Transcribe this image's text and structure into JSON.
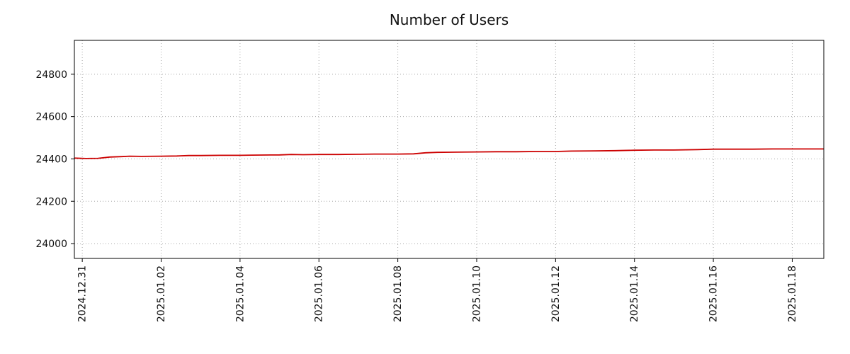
{
  "chart_data": {
    "type": "line",
    "title": "Number of Users",
    "xlabel": "",
    "ylabel": "",
    "legend": "none",
    "grid": {
      "show": true,
      "style": "dotted",
      "color": "#a6a6a6"
    },
    "x_unit": "days since 2024.12.31",
    "xlim": [
      -0.2,
      18.8
    ],
    "ylim": [
      23930,
      24960
    ],
    "y_ticks": [
      24000,
      24200,
      24400,
      24600,
      24800
    ],
    "x_ticks": [
      {
        "pos": 0,
        "label": "2024.12.31"
      },
      {
        "pos": 2,
        "label": "2025.01.02"
      },
      {
        "pos": 4,
        "label": "2025.01.04"
      },
      {
        "pos": 6,
        "label": "2025.01.06"
      },
      {
        "pos": 8,
        "label": "2025.01.08"
      },
      {
        "pos": 10,
        "label": "2025.01.10"
      },
      {
        "pos": 12,
        "label": "2025.01.12"
      },
      {
        "pos": 14,
        "label": "2025.01.14"
      },
      {
        "pos": 16,
        "label": "2025.01.16"
      },
      {
        "pos": 18,
        "label": "2025.01.18"
      }
    ],
    "series": [
      {
        "name": "Number of Users",
        "color": "#cc0000",
        "points": [
          [
            -0.2,
            24404
          ],
          [
            0.1,
            24402
          ],
          [
            0.4,
            24403
          ],
          [
            0.7,
            24409
          ],
          [
            1.0,
            24411
          ],
          [
            1.2,
            24413
          ],
          [
            1.5,
            24412
          ],
          [
            2.0,
            24413
          ],
          [
            2.4,
            24414
          ],
          [
            2.7,
            24416
          ],
          [
            3.0,
            24416
          ],
          [
            3.5,
            24417
          ],
          [
            4.0,
            24417
          ],
          [
            4.3,
            24418
          ],
          [
            5.0,
            24419
          ],
          [
            5.3,
            24421
          ],
          [
            5.6,
            24420
          ],
          [
            6.0,
            24421
          ],
          [
            6.5,
            24421
          ],
          [
            7.0,
            24422
          ],
          [
            7.4,
            24423
          ],
          [
            8.0,
            24423
          ],
          [
            8.4,
            24424
          ],
          [
            8.7,
            24429
          ],
          [
            9.0,
            24431
          ],
          [
            9.5,
            24432
          ],
          [
            10.0,
            24433
          ],
          [
            10.5,
            24434
          ],
          [
            11.0,
            24434
          ],
          [
            11.5,
            24435
          ],
          [
            12.0,
            24435
          ],
          [
            12.4,
            24437
          ],
          [
            13.0,
            24438
          ],
          [
            13.5,
            24439
          ],
          [
            14.0,
            24441
          ],
          [
            14.5,
            24442
          ],
          [
            15.0,
            24442
          ],
          [
            15.6,
            24444
          ],
          [
            16.0,
            24446
          ],
          [
            16.5,
            24446
          ],
          [
            17.0,
            24446
          ],
          [
            17.5,
            24447
          ],
          [
            18.0,
            24447
          ],
          [
            18.4,
            24447
          ],
          [
            18.8,
            24447
          ]
        ]
      }
    ]
  }
}
